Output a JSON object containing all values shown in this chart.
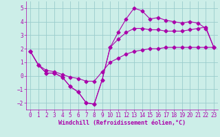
{
  "xlabel": "Windchill (Refroidissement éolien,°C)",
  "bg_color": "#cceee8",
  "line_color": "#aa00aa",
  "grid_color": "#99cccc",
  "xlim": [
    -0.5,
    23.5
  ],
  "ylim": [
    -2.5,
    5.5
  ],
  "yticks": [
    -2,
    -1,
    0,
    1,
    2,
    3,
    4,
    5
  ],
  "xticks": [
    0,
    1,
    2,
    3,
    4,
    5,
    6,
    7,
    8,
    9,
    10,
    11,
    12,
    13,
    14,
    15,
    16,
    17,
    18,
    19,
    20,
    21,
    22,
    23
  ],
  "curve1_x": [
    0,
    1,
    2,
    3,
    4,
    5,
    6,
    7,
    8,
    9,
    10,
    11,
    12,
    13,
    14,
    15,
    16,
    17,
    18,
    19,
    20,
    21,
    22,
    23
  ],
  "curve1_y": [
    1.8,
    0.8,
    0.2,
    0.2,
    -0.1,
    -0.8,
    -1.2,
    -2.0,
    -2.1,
    -0.3,
    2.1,
    3.2,
    4.2,
    5.0,
    4.8,
    4.2,
    4.3,
    4.1,
    4.0,
    3.9,
    4.0,
    3.9,
    3.5,
    2.1
  ],
  "curve2_x": [
    0,
    1,
    2,
    3,
    4,
    5,
    6,
    7,
    8,
    9,
    10,
    11,
    12,
    13,
    14,
    15,
    16,
    17,
    18,
    19,
    20,
    21,
    22,
    23
  ],
  "curve2_y": [
    1.8,
    0.8,
    0.2,
    0.2,
    -0.1,
    -0.8,
    -1.2,
    -2.0,
    -2.1,
    -0.3,
    2.1,
    2.7,
    3.2,
    3.5,
    3.5,
    3.4,
    3.4,
    3.3,
    3.3,
    3.3,
    3.4,
    3.5,
    3.6,
    2.1
  ],
  "curve3_x": [
    0,
    1,
    2,
    3,
    4,
    5,
    6,
    7,
    8,
    9,
    10,
    11,
    12,
    13,
    14,
    15,
    16,
    17,
    18,
    19,
    20,
    21,
    22,
    23
  ],
  "curve3_y": [
    1.8,
    0.8,
    0.4,
    0.3,
    0.1,
    -0.1,
    -0.2,
    -0.4,
    -0.4,
    0.3,
    1.0,
    1.3,
    1.6,
    1.8,
    1.9,
    2.0,
    2.0,
    2.1,
    2.1,
    2.1,
    2.1,
    2.1,
    2.1,
    2.1
  ],
  "tick_fontsize": 5.5,
  "label_fontsize": 6.0
}
